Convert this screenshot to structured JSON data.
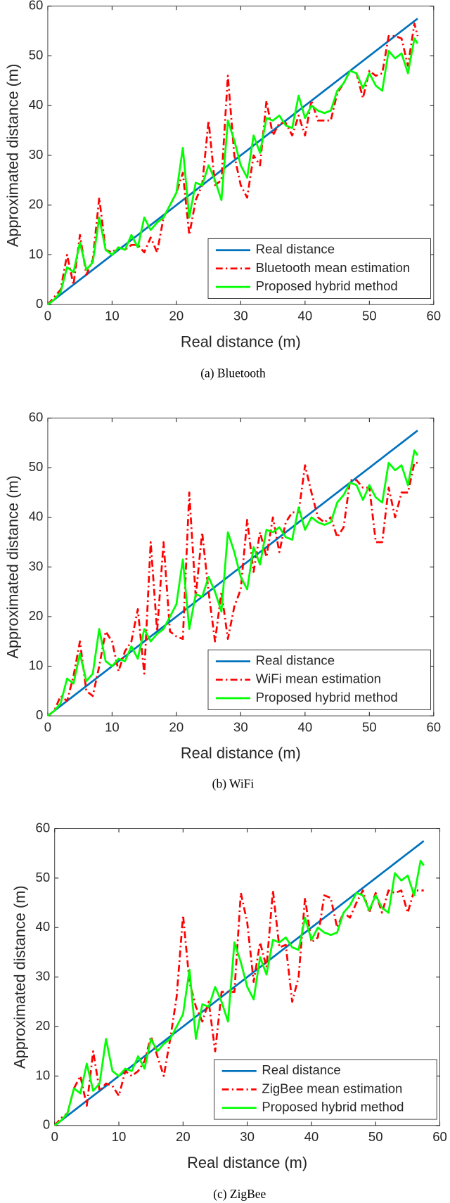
{
  "chart_data": [
    {
      "type": "line",
      "caption": "(a)  Bluetooth",
      "xlabel": "Real distance (m)",
      "ylabel": "Approximated distance (m)",
      "xlim": [
        0,
        60
      ],
      "ylim": [
        0,
        60
      ],
      "xticks": [
        0,
        10,
        20,
        30,
        40,
        50,
        60
      ],
      "yticks": [
        0,
        10,
        20,
        30,
        40,
        50,
        60
      ],
      "legend": "lower right",
      "x": [
        0,
        1,
        2,
        3,
        4,
        5,
        6,
        7,
        8,
        9,
        10,
        11,
        12,
        13,
        14,
        15,
        16,
        17,
        18,
        19,
        20,
        21,
        22,
        23,
        24,
        25,
        26,
        27,
        28,
        29,
        30,
        31,
        32,
        33,
        34,
        35,
        36,
        37,
        38,
        39,
        40,
        41,
        42,
        43,
        44,
        45,
        46,
        47,
        48,
        49,
        50,
        51,
        52,
        53,
        54,
        55,
        56,
        57,
        57.5
      ],
      "series": [
        {
          "name": "Real distance",
          "color": "#0072bd",
          "style": "solid",
          "values": [
            0,
            1,
            2,
            3,
            4,
            5,
            6,
            7,
            8,
            9,
            10,
            11,
            12,
            13,
            14,
            15,
            16,
            17,
            18,
            19,
            20,
            21,
            22,
            23,
            24,
            25,
            26,
            27,
            28,
            29,
            30,
            31,
            32,
            33,
            34,
            35,
            36,
            37,
            38,
            39,
            40,
            41,
            42,
            43,
            44,
            45,
            46,
            47,
            48,
            49,
            50,
            51,
            52,
            53,
            54,
            55,
            56,
            57,
            57.5
          ]
        },
        {
          "name": "Bluetooth mean estimation",
          "color": "#ff0000",
          "style": "dashdot",
          "values": [
            0,
            1.5,
            3,
            10,
            4,
            14,
            6,
            9,
            21.5,
            11,
            10.5,
            11.5,
            11,
            12,
            12,
            10.5,
            13.5,
            10.5,
            17.5,
            20,
            22.5,
            26.5,
            14,
            21,
            24,
            37,
            24,
            25,
            46,
            30,
            24,
            21.5,
            30,
            28,
            41,
            34,
            36.5,
            36.5,
            34,
            38,
            34,
            41,
            37,
            37,
            37,
            42.5,
            44.5,
            47,
            46.5,
            41.5,
            47,
            46,
            46.5,
            54,
            54,
            53.5,
            48,
            56.5,
            54
          ]
        },
        {
          "name": "Proposed hybrid method",
          "color": "#00ff00",
          "style": "solid",
          "values": [
            0,
            1,
            2.5,
            7.5,
            6.5,
            12.5,
            7,
            8.5,
            17.5,
            11,
            10,
            11.5,
            11,
            14,
            11.5,
            17.5,
            15,
            16.5,
            17.5,
            20,
            22.5,
            31.5,
            17.5,
            24.5,
            24,
            28,
            25,
            21,
            37,
            33,
            28,
            25.5,
            34,
            30.5,
            37.5,
            37,
            38,
            36,
            35.5,
            42,
            37.5,
            40,
            39,
            38.5,
            39,
            43,
            44.5,
            47,
            46.5,
            43.5,
            46.5,
            44,
            43,
            51,
            49.5,
            50.5,
            46.5,
            53.5,
            52.5
          ]
        }
      ]
    },
    {
      "type": "line",
      "caption": "(b)  WiFi",
      "xlabel": "Real distance (m)",
      "ylabel": "Approximated distance (m)",
      "xlim": [
        0,
        60
      ],
      "ylim": [
        0,
        60
      ],
      "xticks": [
        0,
        10,
        20,
        30,
        40,
        50,
        60
      ],
      "yticks": [
        0,
        10,
        20,
        30,
        40,
        50,
        60
      ],
      "legend": "lower right",
      "x": [
        0,
        1,
        2,
        3,
        4,
        5,
        6,
        7,
        8,
        9,
        10,
        11,
        12,
        13,
        14,
        15,
        16,
        17,
        18,
        19,
        20,
        21,
        22,
        23,
        24,
        25,
        26,
        27,
        28,
        29,
        30,
        31,
        32,
        33,
        34,
        35,
        36,
        37,
        38,
        39,
        40,
        41,
        42,
        43,
        44,
        45,
        46,
        47,
        48,
        49,
        50,
        51,
        52,
        53,
        54,
        55,
        56,
        57,
        57.5
      ],
      "series": [
        {
          "name": "Real distance",
          "color": "#0072bd",
          "style": "solid",
          "values": [
            0,
            1,
            2,
            3,
            4,
            5,
            6,
            7,
            8,
            9,
            10,
            11,
            12,
            13,
            14,
            15,
            16,
            17,
            18,
            19,
            20,
            21,
            22,
            23,
            24,
            25,
            26,
            27,
            28,
            29,
            30,
            31,
            32,
            33,
            34,
            35,
            36,
            37,
            38,
            39,
            40,
            41,
            42,
            43,
            44,
            45,
            46,
            47,
            48,
            49,
            50,
            51,
            52,
            53,
            54,
            55,
            56,
            57,
            57.5
          ]
        },
        {
          "name": "WiFi mean estimation",
          "color": "#ff0000",
          "style": "dashdot",
          "values": [
            0,
            1,
            4,
            3,
            8,
            15,
            5,
            4,
            10,
            17,
            15,
            9,
            13,
            15,
            21.5,
            8.5,
            35,
            17,
            35,
            17,
            16,
            15.5,
            45,
            24,
            37,
            25,
            15,
            25,
            15.5,
            22,
            25.5,
            39.5,
            29,
            37,
            32,
            40,
            33,
            39,
            41,
            41,
            50.5,
            45,
            40,
            39,
            40,
            36,
            38,
            47.5,
            47.5,
            46,
            46,
            35,
            35,
            46,
            40,
            45,
            45,
            51,
            51
          ]
        },
        {
          "name": "Proposed hybrid method",
          "color": "#00ff00",
          "style": "solid",
          "values": [
            0,
            1,
            2.5,
            7.5,
            6.5,
            12.5,
            7,
            8.5,
            17.5,
            11,
            10,
            11.5,
            11,
            14,
            11.5,
            17.5,
            15,
            16.5,
            17.5,
            20,
            22.5,
            31.5,
            17.5,
            24.5,
            24,
            28,
            25,
            21,
            37,
            33,
            28,
            25.5,
            34,
            30.5,
            37.5,
            37,
            38,
            36,
            35.5,
            42,
            37.5,
            40,
            39,
            38.5,
            39,
            43,
            44.5,
            47,
            46.5,
            43.5,
            46.5,
            44,
            43,
            51,
            49.5,
            50.5,
            46.5,
            53.5,
            52.5
          ]
        }
      ]
    },
    {
      "type": "line",
      "caption": "(c)  ZigBee",
      "xlabel": "Real distance (m)",
      "ylabel": "Approximated distance (m)",
      "xlim": [
        0,
        60
      ],
      "ylim": [
        0,
        60
      ],
      "xticks": [
        0,
        10,
        20,
        30,
        40,
        50,
        60
      ],
      "yticks": [
        0,
        10,
        20,
        30,
        40,
        50,
        60
      ],
      "legend": "lower right",
      "x": [
        0,
        1,
        2,
        3,
        4,
        5,
        6,
        7,
        8,
        9,
        10,
        11,
        12,
        13,
        14,
        15,
        16,
        17,
        18,
        19,
        20,
        21,
        22,
        23,
        24,
        25,
        26,
        27,
        28,
        29,
        30,
        31,
        32,
        33,
        34,
        35,
        36,
        37,
        38,
        39,
        40,
        41,
        42,
        43,
        44,
        45,
        46,
        47,
        48,
        49,
        50,
        51,
        52,
        53,
        54,
        55,
        56,
        57,
        57.5
      ],
      "series": [
        {
          "name": "Real distance",
          "color": "#0072bd",
          "style": "solid",
          "values": [
            0,
            1,
            2,
            3,
            4,
            5,
            6,
            7,
            8,
            9,
            10,
            11,
            12,
            13,
            14,
            15,
            16,
            17,
            18,
            19,
            20,
            21,
            22,
            23,
            24,
            25,
            26,
            27,
            28,
            29,
            30,
            31,
            32,
            33,
            34,
            35,
            36,
            37,
            38,
            39,
            40,
            41,
            42,
            43,
            44,
            45,
            46,
            47,
            48,
            49,
            50,
            51,
            52,
            53,
            54,
            55,
            56,
            57,
            57.5
          ]
        },
        {
          "name": "ZigBee mean estimation",
          "color": "#ff0000",
          "style": "dashdot",
          "values": [
            0,
            1.5,
            2.5,
            7.5,
            10,
            4,
            15,
            7,
            8.5,
            8,
            6,
            11,
            10,
            11,
            13,
            18,
            14,
            10,
            17.5,
            26,
            42.5,
            29,
            24,
            21,
            25,
            15,
            27,
            27,
            27,
            47,
            41,
            29,
            37,
            32,
            47.5,
            36,
            36.5,
            25,
            30,
            46,
            37,
            38,
            46.5,
            46,
            40,
            43,
            42,
            45,
            47.5,
            43,
            47,
            43,
            47.5,
            47,
            47.5,
            43,
            47.5,
            47.5,
            47.5
          ]
        },
        {
          "name": "Proposed hybrid method",
          "color": "#00ff00",
          "style": "solid",
          "values": [
            0,
            1,
            2.5,
            7.5,
            6.5,
            12.5,
            7,
            8.5,
            17.5,
            11,
            10,
            11.5,
            11,
            14,
            11.5,
            17.5,
            15,
            16.5,
            17.5,
            20,
            22.5,
            31.5,
            17.5,
            24.5,
            24,
            28,
            25,
            21,
            37,
            33,
            28,
            25.5,
            34,
            30.5,
            37.5,
            37,
            38,
            36,
            35.5,
            42,
            37.5,
            40,
            39,
            38.5,
            39,
            43,
            44.5,
            47,
            46.5,
            43.5,
            46.5,
            44,
            43,
            51,
            49.5,
            50.5,
            46.5,
            53.5,
            52.5
          ]
        }
      ]
    }
  ]
}
